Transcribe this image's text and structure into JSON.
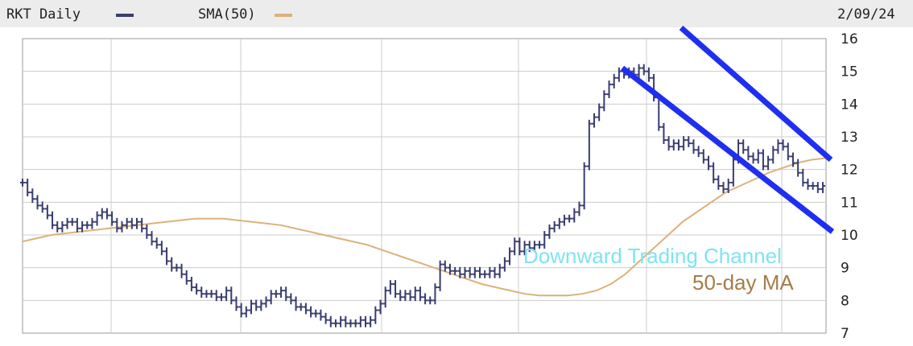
{
  "header": {
    "ticker_label": "RKT Daily",
    "sma_label": "SMA(50)",
    "date": "2/09/24"
  },
  "colors": {
    "price": "#3a3d6e",
    "sma": "#dcb27a",
    "channel": "#1f2ff0",
    "channel_annotation": "#7fe3f0",
    "ma_annotation": "#a67c4a",
    "grid": "#cccccc"
  },
  "chart_data": {
    "type": "line",
    "title": "RKT Daily",
    "ylim": [
      7,
      16
    ],
    "y_ticks": [
      7,
      8,
      9,
      10,
      11,
      12,
      13,
      14,
      15,
      16
    ],
    "grid": true,
    "series": [
      {
        "name": "RKT Daily",
        "kind": "ohlc",
        "values": [
          11.6,
          11.3,
          11.1,
          10.9,
          10.8,
          10.6,
          10.3,
          10.2,
          10.3,
          10.4,
          10.4,
          10.2,
          10.3,
          10.3,
          10.4,
          10.6,
          10.7,
          10.6,
          10.4,
          10.2,
          10.3,
          10.4,
          10.3,
          10.4,
          10.2,
          10.0,
          9.8,
          9.7,
          9.5,
          9.2,
          9.0,
          9.0,
          8.8,
          8.6,
          8.4,
          8.3,
          8.2,
          8.2,
          8.2,
          8.1,
          8.1,
          8.3,
          8.0,
          7.8,
          7.6,
          7.7,
          7.9,
          7.8,
          7.9,
          8.0,
          8.2,
          8.2,
          8.3,
          8.1,
          8.0,
          7.8,
          7.8,
          7.7,
          7.6,
          7.6,
          7.5,
          7.4,
          7.3,
          7.3,
          7.4,
          7.3,
          7.3,
          7.3,
          7.4,
          7.3,
          7.4,
          7.7,
          7.9,
          8.3,
          8.5,
          8.2,
          8.1,
          8.2,
          8.1,
          8.3,
          8.1,
          8.0,
          8.0,
          8.4,
          9.1,
          9.0,
          8.9,
          8.9,
          8.8,
          8.9,
          8.8,
          8.9,
          8.8,
          8.8,
          8.9,
          8.8,
          9.0,
          9.2,
          9.5,
          9.8,
          9.5,
          9.7,
          9.6,
          9.7,
          9.7,
          10.0,
          10.2,
          10.3,
          10.4,
          10.5,
          10.5,
          10.7,
          10.9,
          12.1,
          13.4,
          13.6,
          13.9,
          14.3,
          14.6,
          14.8,
          15.0,
          14.9,
          15.0,
          14.9,
          15.1,
          15.0,
          14.8,
          14.2,
          13.3,
          12.9,
          12.7,
          12.8,
          12.7,
          12.9,
          12.8,
          12.6,
          12.5,
          12.3,
          12.1,
          11.7,
          11.5,
          11.4,
          11.6,
          12.3,
          12.8,
          12.6,
          12.4,
          12.3,
          12.5,
          12.1,
          12.3,
          12.6,
          12.8,
          12.7,
          12.4,
          12.2,
          11.9,
          11.6,
          11.5,
          11.5,
          11.4,
          11.5
        ]
      },
      {
        "name": "SMA(50)",
        "kind": "line",
        "values": [
          9.8,
          9.9,
          10.0,
          10.05,
          10.1,
          10.15,
          10.2,
          10.25,
          10.3,
          10.35,
          10.4,
          10.45,
          10.5,
          10.5,
          10.5,
          10.45,
          10.4,
          10.35,
          10.3,
          10.2,
          10.1,
          10.0,
          9.9,
          9.8,
          9.7,
          9.55,
          9.4,
          9.25,
          9.1,
          8.95,
          8.8,
          8.65,
          8.5,
          8.4,
          8.3,
          8.2,
          8.15,
          8.15,
          8.15,
          8.2,
          8.3,
          8.5,
          8.8,
          9.2,
          9.6,
          10.0,
          10.4,
          10.7,
          11.0,
          11.3,
          11.5,
          11.7,
          11.9,
          12.05,
          12.2,
          12.3,
          12.35
        ]
      }
    ],
    "annotations": [
      {
        "text": "Downward Trading Channel",
        "color": "#7fe3f0"
      },
      {
        "text": "50-day MA",
        "color": "#a67c4a"
      }
    ],
    "trend_lines": [
      {
        "name": "upper-channel",
        "y_start": 15.3,
        "y_end": 12.3
      },
      {
        "name": "lower-channel",
        "y_start": 15.3,
        "y_end": 10.1
      }
    ]
  }
}
